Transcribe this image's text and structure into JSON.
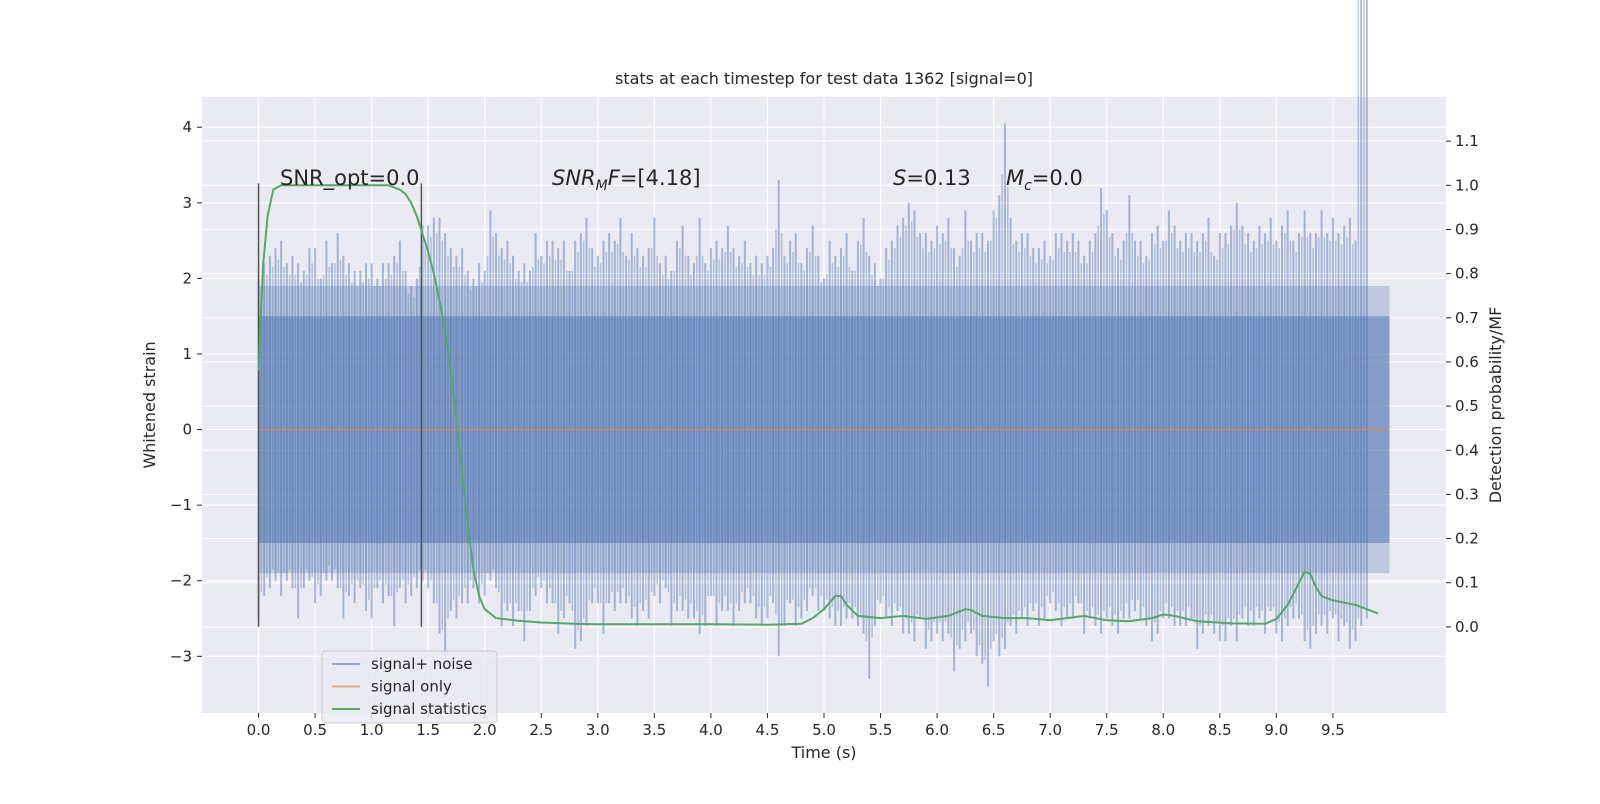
{
  "chart_data": {
    "type": "line",
    "title": "stats at each timestep for test data 1362 [signal=0]",
    "xlabel": "Time (s)",
    "ylabel": "Whitened strain",
    "y2label": "Detection probability/MF",
    "xlim": [
      -0.5,
      10.5
    ],
    "ylim": [
      -3.75,
      4.4
    ],
    "y2lim": [
      -0.195,
      1.2
    ],
    "grid": true,
    "legend_position": "bottom-left",
    "x_ticks": [
      "0.0",
      "0.5",
      "1.0",
      "1.5",
      "2.0",
      "2.5",
      "3.0",
      "3.5",
      "4.0",
      "4.5",
      "5.0",
      "5.5",
      "6.0",
      "6.5",
      "7.0",
      "7.5",
      "8.0",
      "8.5",
      "9.0",
      "9.5"
    ],
    "y_ticks": [
      "4",
      "3",
      "2",
      "1",
      "0",
      "−1",
      "−2",
      "−3"
    ],
    "y2_ticks": [
      "1.1",
      "1.0",
      "0.9",
      "0.8",
      "0.7",
      "0.6",
      "0.5",
      "0.4",
      "0.3",
      "0.2",
      "0.1",
      "0.0"
    ],
    "annotations": {
      "snr_opt": "SNR_opt=0.0",
      "snr_mf_var": "SNR",
      "snr_mf_sub": "M",
      "snr_mf_var2": "F",
      "snr_mf_value": "=[4.18]",
      "s_var": "S",
      "s_value": "=0.13",
      "mc_var": "M",
      "mc_sub": "c",
      "mc_value": "=0.0"
    },
    "window_markers_x": [
      0.0,
      1.44
    ],
    "noise_band": {
      "x_start": 0.0,
      "x_end": 10.0,
      "y_min": -3.4,
      "y_max": 4.05
    },
    "series": [
      {
        "name": "signal+ noise",
        "color": "#4c72b0",
        "x": [
          0.0,
          0.05,
          0.1,
          0.15,
          0.2,
          0.25,
          0.3,
          0.35,
          0.4,
          0.45,
          0.5,
          0.55,
          0.6,
          0.65,
          0.7,
          0.75,
          0.8,
          0.85,
          0.9,
          0.95,
          1.0,
          1.05,
          1.1,
          1.15,
          1.2,
          1.25,
          1.3,
          1.35,
          1.4,
          1.45,
          1.5,
          1.55,
          1.6,
          1.65,
          1.7,
          1.75,
          1.8,
          1.85,
          1.9,
          1.95,
          2.0,
          2.05,
          2.1,
          2.15,
          2.2,
          2.25,
          2.3,
          2.35,
          2.4,
          2.45,
          2.5,
          2.55,
          2.6,
          2.65,
          2.7,
          2.75,
          2.8,
          2.85,
          2.9,
          2.95,
          3.0,
          3.05,
          3.1,
          3.15,
          3.2,
          3.25,
          3.3,
          3.35,
          3.4,
          3.45,
          3.5,
          3.55,
          3.6,
          3.65,
          3.7,
          3.75,
          3.8,
          3.85,
          3.9,
          3.95,
          4.0,
          4.05,
          4.1,
          4.15,
          4.2,
          4.25,
          4.3,
          4.35,
          4.4,
          4.45,
          4.5,
          4.55,
          4.6,
          4.65,
          4.7,
          4.75,
          4.8,
          4.85,
          4.9,
          4.95,
          5.0,
          5.05,
          5.1,
          5.15,
          5.2,
          5.25,
          5.3,
          5.35,
          5.4,
          5.45,
          5.5,
          5.55,
          5.6,
          5.65,
          5.7,
          5.75,
          5.8,
          5.85,
          5.9,
          5.95,
          6.0,
          6.05,
          6.1,
          6.15,
          6.2,
          6.25,
          6.3,
          6.35,
          6.4,
          6.45,
          6.5,
          6.55,
          6.6,
          6.65,
          6.7,
          6.75,
          6.8,
          6.85,
          6.9,
          6.95,
          7.0,
          7.05,
          7.1,
          7.15,
          7.2,
          7.25,
          7.3,
          7.35,
          7.4,
          7.45,
          7.5,
          7.55,
          7.6,
          7.65,
          7.7,
          7.75,
          7.8,
          7.85,
          7.9,
          7.95,
          8.0,
          8.05,
          8.1,
          8.15,
          8.2,
          8.25,
          8.3,
          8.35,
          8.4,
          8.45,
          8.5,
          8.55,
          8.6,
          8.65,
          8.7,
          8.75,
          8.8,
          8.85,
          8.9,
          8.95,
          9.0,
          9.05,
          9.1,
          9.15,
          9.2,
          9.25,
          9.3,
          9.35,
          9.4,
          9.45,
          9.5,
          9.55,
          9.6,
          9.65,
          9.7,
          9.75,
          9.8,
          9.85,
          9.9,
          9.95,
          10.0
        ],
        "y_max": [
          2.0,
          2.2,
          2.3,
          2.4,
          2.5,
          2.2,
          2.3,
          2.2,
          2.1,
          2.4,
          2.4,
          2.0,
          2.5,
          2.2,
          2.6,
          2.3,
          2.2,
          2.1,
          2.1,
          2.2,
          2.2,
          2.0,
          2.2,
          2.2,
          2.3,
          2.5,
          2.1,
          1.9,
          2.0,
          2.7,
          2.7,
          2.8,
          2.8,
          2.6,
          2.4,
          2.3,
          2.4,
          2.1,
          2.0,
          2.2,
          2.1,
          2.9,
          2.6,
          2.4,
          2.5,
          2.3,
          2.1,
          2.2,
          2.1,
          2.6,
          2.3,
          2.5,
          2.5,
          2.4,
          2.5,
          2.1,
          2.5,
          2.6,
          2.8,
          2.4,
          2.3,
          2.5,
          2.6,
          2.5,
          2.8,
          2.3,
          2.6,
          2.4,
          2.3,
          2.4,
          2.8,
          2.2,
          2.3,
          2.1,
          2.5,
          2.7,
          2.3,
          2.2,
          2.8,
          2.2,
          2.4,
          2.5,
          2.4,
          2.7,
          2.4,
          2.3,
          2.5,
          2.2,
          2.3,
          2.2,
          2.3,
          2.4,
          3.3,
          2.3,
          2.5,
          2.6,
          2.2,
          2.4,
          2.7,
          2.3,
          2.0,
          2.5,
          2.3,
          2.4,
          2.6,
          2.1,
          2.5,
          2.8,
          2.3,
          2.2,
          2.0,
          2.4,
          2.5,
          2.7,
          2.8,
          3.0,
          2.9,
          2.6,
          2.6,
          2.5,
          2.7,
          2.6,
          2.8,
          2.4,
          2.3,
          2.9,
          2.5,
          2.6,
          2.6,
          2.5,
          2.9,
          3.1,
          4.05,
          2.8,
          2.5,
          2.6,
          2.6,
          2.4,
          2.4,
          2.5,
          2.3,
          2.6,
          2.6,
          2.5,
          2.6,
          2.5,
          2.3,
          2.5,
          2.6,
          3.2,
          2.9,
          2.6,
          2.4,
          2.5,
          3.1,
          2.5,
          2.5,
          2.3,
          2.6,
          2.7,
          2.5,
          2.9,
          2.7,
          2.5,
          2.6,
          2.6,
          2.5,
          2.6,
          2.8,
          2.3,
          2.6,
          2.6,
          2.7,
          3.0,
          2.7,
          2.6,
          2.5,
          2.7,
          2.6,
          2.8,
          2.5,
          2.7,
          2.9,
          2.5,
          2.6,
          2.9,
          2.6,
          2.6,
          2.9,
          2.6,
          2.8,
          2.6,
          2.7,
          2.8,
          2.5
        ],
        "y_min": [
          -2.5,
          -2.2,
          -2.1,
          -2.0,
          -2.2,
          -2.0,
          -2.1,
          -2.5,
          -2.1,
          -2.0,
          -2.3,
          -2.2,
          -2.0,
          -2.0,
          -2.1,
          -2.5,
          -2.2,
          -2.3,
          -2.1,
          -2.4,
          -2.5,
          -2.1,
          -2.3,
          -2.2,
          -2.6,
          -2.1,
          -2.3,
          -2.2,
          -2.1,
          -2.0,
          -2.1,
          -2.3,
          -2.7,
          -3.0,
          -2.4,
          -2.5,
          -2.3,
          -2.3,
          -2.1,
          -2.3,
          -2.2,
          -2.0,
          -2.1,
          -2.6,
          -2.4,
          -2.6,
          -2.4,
          -2.8,
          -2.4,
          -2.2,
          -2.1,
          -2.3,
          -2.3,
          -2.7,
          -2.5,
          -2.3,
          -2.9,
          -2.8,
          -2.6,
          -2.3,
          -2.3,
          -2.7,
          -2.3,
          -2.4,
          -2.3,
          -2.3,
          -2.5,
          -2.6,
          -2.4,
          -2.5,
          -2.2,
          -2.3,
          -2.1,
          -2.6,
          -2.4,
          -2.4,
          -2.5,
          -2.5,
          -2.7,
          -2.6,
          -2.2,
          -2.6,
          -2.4,
          -2.4,
          -2.6,
          -2.4,
          -2.3,
          -2.3,
          -2.5,
          -2.6,
          -2.5,
          -2.3,
          -3.0,
          -2.6,
          -2.3,
          -2.6,
          -2.5,
          -2.4,
          -2.2,
          -2.4,
          -2.4,
          -2.5,
          -2.6,
          -2.6,
          -2.5,
          -2.5,
          -2.6,
          -2.7,
          -3.3,
          -2.6,
          -2.3,
          -2.5,
          -2.6,
          -2.4,
          -2.7,
          -2.7,
          -2.8,
          -2.5,
          -2.9,
          -2.8,
          -2.7,
          -2.8,
          -2.7,
          -3.2,
          -2.9,
          -2.8,
          -2.7,
          -3.0,
          -3.1,
          -3.4,
          -2.8,
          -3.0,
          -2.9,
          -2.6,
          -2.7,
          -2.5,
          -2.6,
          -2.4,
          -2.6,
          -2.5,
          -2.3,
          -2.4,
          -2.6,
          -2.5,
          -2.5,
          -2.3,
          -2.7,
          -2.5,
          -2.6,
          -2.7,
          -2.5,
          -2.6,
          -2.7,
          -2.5,
          -2.5,
          -2.4,
          -2.5,
          -2.6,
          -2.8,
          -2.7,
          -2.5,
          -2.5,
          -2.6,
          -2.6,
          -2.6,
          -2.5,
          -2.9,
          -2.7,
          -2.6,
          -2.7,
          -2.8,
          -2.8,
          -2.6,
          -2.8,
          -2.5,
          -2.6,
          -2.6,
          -2.5,
          -2.7,
          -2.4,
          -2.7,
          -2.8,
          -2.6,
          -2.5,
          -2.5,
          -2.8,
          -2.9,
          -2.7,
          -2.6,
          -2.7,
          -2.5,
          -2.8,
          -2.6,
          -2.9,
          -2.8,
          -2.6,
          -2.5
        ]
      },
      {
        "name": "signal only",
        "color": "#dd8452",
        "x": [
          0.0,
          10.0
        ],
        "y": [
          0.0,
          0.0
        ]
      },
      {
        "name": "signal statistics",
        "color": "#55a868",
        "axis": "right",
        "x": [
          0.0,
          0.04,
          0.08,
          0.13,
          0.2,
          0.3,
          0.5,
          0.8,
          1.0,
          1.15,
          1.25,
          1.3,
          1.35,
          1.4,
          1.45,
          1.5,
          1.55,
          1.6,
          1.65,
          1.7,
          1.75,
          1.8,
          1.85,
          1.9,
          1.95,
          2.0,
          2.05,
          2.1,
          2.2,
          2.3,
          2.5,
          2.8,
          3.0,
          3.5,
          4.0,
          4.5,
          4.8,
          4.9,
          5.0,
          5.1,
          5.15,
          5.2,
          5.3,
          5.5,
          5.7,
          5.9,
          6.1,
          6.25,
          6.3,
          6.4,
          6.6,
          6.8,
          7.0,
          7.15,
          7.3,
          7.5,
          7.7,
          7.9,
          8.0,
          8.1,
          8.3,
          8.6,
          8.9,
          9.0,
          9.1,
          9.2,
          9.25,
          9.3,
          9.35,
          9.4,
          9.5,
          9.7,
          9.9
        ],
        "y": [
          0.58,
          0.82,
          0.93,
          0.99,
          1.0,
          1.0,
          1.0,
          1.0,
          1.0,
          1.0,
          0.99,
          0.98,
          0.96,
          0.93,
          0.89,
          0.85,
          0.8,
          0.74,
          0.67,
          0.58,
          0.47,
          0.35,
          0.23,
          0.13,
          0.07,
          0.04,
          0.03,
          0.02,
          0.017,
          0.014,
          0.01,
          0.007,
          0.006,
          0.006,
          0.006,
          0.005,
          0.007,
          0.02,
          0.04,
          0.07,
          0.07,
          0.05,
          0.025,
          0.02,
          0.025,
          0.018,
          0.025,
          0.04,
          0.038,
          0.025,
          0.02,
          0.02,
          0.015,
          0.02,
          0.025,
          0.015,
          0.013,
          0.02,
          0.028,
          0.025,
          0.013,
          0.008,
          0.007,
          0.018,
          0.05,
          0.1,
          0.125,
          0.12,
          0.09,
          0.07,
          0.06,
          0.05,
          0.03
        ]
      }
    ]
  }
}
